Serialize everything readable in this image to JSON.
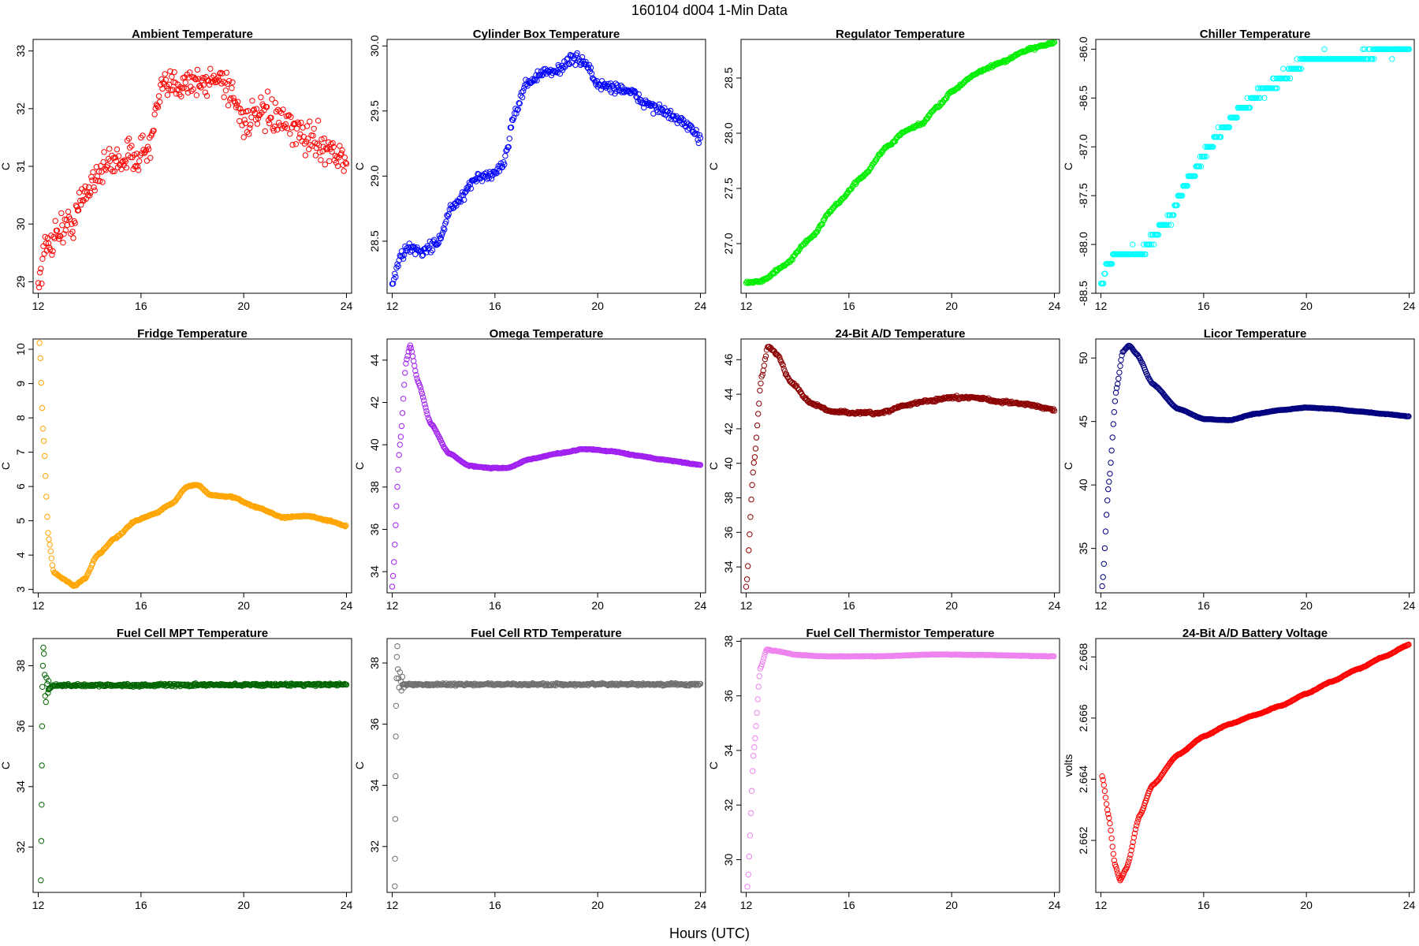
{
  "figure": {
    "title": "160104    d004    1-Min Data",
    "xlabel": "Hours (UTC)"
  },
  "chart_data": [
    {
      "type": "scatter",
      "title": "Ambient Temperature",
      "ylabel": "C",
      "color": "#ff0000",
      "xlim": [
        11.8,
        24.2
      ],
      "ylim": [
        28.8,
        33.2
      ],
      "xticks": [
        12,
        16,
        20,
        24
      ],
      "yticks": [
        29,
        30,
        31,
        32,
        33
      ],
      "noise": 0.28,
      "curve": [
        [
          12.0,
          29.0
        ],
        [
          12.3,
          29.6
        ],
        [
          12.8,
          29.9
        ],
        [
          13.3,
          30.0
        ],
        [
          13.8,
          30.5
        ],
        [
          14.3,
          30.9
        ],
        [
          15.0,
          31.1
        ],
        [
          15.8,
          31.2
        ],
        [
          16.3,
          31.3
        ],
        [
          16.8,
          32.3
        ],
        [
          17.2,
          32.4
        ],
        [
          17.8,
          32.5
        ],
        [
          18.5,
          32.4
        ],
        [
          19.0,
          32.6
        ],
        [
          19.5,
          32.3
        ],
        [
          20.0,
          31.8
        ],
        [
          21.0,
          31.9
        ],
        [
          22.0,
          31.6
        ],
        [
          23.0,
          31.4
        ],
        [
          24.0,
          31.1
        ]
      ]
    },
    {
      "type": "scatter",
      "title": "Cylinder Box Temperature",
      "ylabel": "C",
      "color": "#0000ff",
      "xlim": [
        11.8,
        24.2
      ],
      "ylim": [
        28.1,
        30.05
      ],
      "xticks": [
        12,
        16,
        20,
        24
      ],
      "yticks": [
        28.5,
        29.0,
        29.5,
        30.0
      ],
      "noise": 0.04,
      "curve": [
        [
          12.0,
          28.15
        ],
        [
          12.3,
          28.38
        ],
        [
          12.7,
          28.45
        ],
        [
          13.2,
          28.42
        ],
        [
          13.8,
          28.5
        ],
        [
          14.3,
          28.75
        ],
        [
          14.8,
          28.85
        ],
        [
          15.3,
          29.0
        ],
        [
          15.8,
          29.0
        ],
        [
          16.3,
          29.08
        ],
        [
          16.8,
          29.5
        ],
        [
          17.2,
          29.7
        ],
        [
          17.7,
          29.78
        ],
        [
          18.3,
          29.8
        ],
        [
          19.0,
          29.9
        ],
        [
          19.5,
          29.88
        ],
        [
          20.0,
          29.7
        ],
        [
          21.0,
          29.67
        ],
        [
          22.0,
          29.55
        ],
        [
          23.0,
          29.45
        ],
        [
          24.0,
          29.3
        ]
      ]
    },
    {
      "type": "scatter",
      "title": "Regulator Temperature",
      "ylabel": "C",
      "color": "#00ee00",
      "xlim": [
        11.8,
        24.2
      ],
      "ylim": [
        26.55,
        28.85
      ],
      "xticks": [
        12,
        16,
        20,
        24
      ],
      "yticks": [
        27.0,
        27.5,
        28.0,
        28.5
      ],
      "noise": 0.012,
      "curve": [
        [
          12.0,
          26.65
        ],
        [
          12.6,
          26.66
        ],
        [
          13.5,
          26.8
        ],
        [
          14.5,
          27.05
        ],
        [
          15.5,
          27.35
        ],
        [
          16.5,
          27.6
        ],
        [
          17.5,
          27.88
        ],
        [
          18.2,
          28.02
        ],
        [
          18.8,
          28.08
        ],
        [
          19.5,
          28.25
        ],
        [
          20.0,
          28.38
        ],
        [
          21.0,
          28.55
        ],
        [
          22.0,
          28.65
        ],
        [
          23.0,
          28.76
        ],
        [
          24.0,
          28.82
        ]
      ]
    },
    {
      "type": "scatter",
      "title": "Chiller Temperature",
      "ylabel": "C",
      "color": "#00ffff",
      "xlim": [
        11.8,
        24.2
      ],
      "ylim": [
        -88.5,
        -85.9
      ],
      "xticks": [
        12,
        16,
        20,
        24
      ],
      "yticks": [
        -88.5,
        -88.0,
        -87.5,
        -87.0,
        -86.5,
        -86.0
      ],
      "step": 0.1,
      "noise": 0.04,
      "curve": [
        [
          12.0,
          -88.4
        ],
        [
          12.3,
          -88.2
        ],
        [
          12.6,
          -88.1
        ],
        [
          13.5,
          -88.1
        ],
        [
          14.5,
          -87.8
        ],
        [
          15.5,
          -87.3
        ],
        [
          16.5,
          -86.9
        ],
        [
          17.5,
          -86.6
        ],
        [
          18.5,
          -86.4
        ],
        [
          19.5,
          -86.2
        ],
        [
          20.0,
          -86.1
        ],
        [
          21.0,
          -86.1
        ],
        [
          22.0,
          -86.1
        ],
        [
          23.0,
          -86.0
        ],
        [
          24.0,
          -86.0
        ]
      ]
    },
    {
      "type": "scatter",
      "title": "Fridge Temperature",
      "ylabel": "C",
      "color": "#ffa500",
      "xlim": [
        11.8,
        24.2
      ],
      "ylim": [
        2.9,
        10.3
      ],
      "xticks": [
        12,
        16,
        20,
        24
      ],
      "yticks": [
        3,
        4,
        5,
        6,
        7,
        8,
        9,
        10
      ],
      "noise": 0.02,
      "curve": [
        [
          12.05,
          10.2
        ],
        [
          12.2,
          7.5
        ],
        [
          12.4,
          4.5
        ],
        [
          12.6,
          3.5
        ],
        [
          13.0,
          3.3
        ],
        [
          13.4,
          3.1
        ],
        [
          13.8,
          3.3
        ],
        [
          14.3,
          4.0
        ],
        [
          15.0,
          4.5
        ],
        [
          15.8,
          5.0
        ],
        [
          16.5,
          5.2
        ],
        [
          17.2,
          5.5
        ],
        [
          17.8,
          6.0
        ],
        [
          18.2,
          6.05
        ],
        [
          18.7,
          5.75
        ],
        [
          19.5,
          5.7
        ],
        [
          20.5,
          5.4
        ],
        [
          21.5,
          5.1
        ],
        [
          22.5,
          5.15
        ],
        [
          23.3,
          5.0
        ],
        [
          24.0,
          4.85
        ]
      ]
    },
    {
      "type": "scatter",
      "title": "Omega Temperature",
      "ylabel": "C",
      "color": "#a020f0",
      "xlim": [
        11.8,
        24.2
      ],
      "ylim": [
        33.0,
        45.0
      ],
      "xticks": [
        12,
        16,
        20,
        24
      ],
      "yticks": [
        34,
        36,
        38,
        40,
        42,
        44
      ],
      "noise": 0.02,
      "curve": [
        [
          12.0,
          33.3
        ],
        [
          12.3,
          40.0
        ],
        [
          12.55,
          44.0
        ],
        [
          12.7,
          44.7
        ],
        [
          13.0,
          43.0
        ],
        [
          13.5,
          41.0
        ],
        [
          14.2,
          39.6
        ],
        [
          15.0,
          39.0
        ],
        [
          15.8,
          38.9
        ],
        [
          16.5,
          38.9
        ],
        [
          17.3,
          39.3
        ],
        [
          18.5,
          39.6
        ],
        [
          19.5,
          39.8
        ],
        [
          20.5,
          39.7
        ],
        [
          21.5,
          39.5
        ],
        [
          22.5,
          39.3
        ],
        [
          24.0,
          39.05
        ]
      ]
    },
    {
      "type": "scatter",
      "title": "24-Bit A/D Temperature",
      "ylabel": "C",
      "color": "#8b0000",
      "xlim": [
        11.8,
        24.2
      ],
      "ylim": [
        32.5,
        47.2
      ],
      "xticks": [
        12,
        16,
        20,
        24
      ],
      "yticks": [
        34,
        36,
        38,
        40,
        42,
        44,
        46
      ],
      "noise": 0.08,
      "curve": [
        [
          12.0,
          32.8
        ],
        [
          12.3,
          40.0
        ],
        [
          12.6,
          45.0
        ],
        [
          12.85,
          46.8
        ],
        [
          13.2,
          46.3
        ],
        [
          13.7,
          44.8
        ],
        [
          14.5,
          43.5
        ],
        [
          15.3,
          43.0
        ],
        [
          16.5,
          42.9
        ],
        [
          17.3,
          42.9
        ],
        [
          18.0,
          43.3
        ],
        [
          19.0,
          43.6
        ],
        [
          20.0,
          43.8
        ],
        [
          21.0,
          43.8
        ],
        [
          22.0,
          43.55
        ],
        [
          23.0,
          43.4
        ],
        [
          24.0,
          43.1
        ]
      ]
    },
    {
      "type": "scatter",
      "title": "Licor Temperature",
      "ylabel": "C",
      "color": "#000080",
      "xlim": [
        11.8,
        24.2
      ],
      "ylim": [
        31.5,
        51.5
      ],
      "xticks": [
        12,
        16,
        20,
        24
      ],
      "yticks": [
        35,
        40,
        45,
        50
      ],
      "noise": 0.02,
      "curve": [
        [
          12.05,
          32.0
        ],
        [
          12.3,
          40.0
        ],
        [
          12.6,
          47.5
        ],
        [
          12.85,
          50.5
        ],
        [
          13.1,
          51.0
        ],
        [
          13.4,
          50.3
        ],
        [
          14.0,
          48.0
        ],
        [
          15.0,
          46.0
        ],
        [
          16.0,
          45.2
        ],
        [
          17.0,
          45.1
        ],
        [
          18.0,
          45.6
        ],
        [
          19.0,
          45.9
        ],
        [
          20.0,
          46.1
        ],
        [
          21.0,
          46.0
        ],
        [
          22.0,
          45.8
        ],
        [
          23.0,
          45.6
        ],
        [
          24.0,
          45.4
        ]
      ]
    },
    {
      "type": "scatter",
      "title": "Fuel Cell MPT Temperature",
      "ylabel": "C",
      "color": "#006400",
      "xlim": [
        11.8,
        24.2
      ],
      "ylim": [
        30.5,
        38.9
      ],
      "xticks": [
        12,
        16,
        20,
        24
      ],
      "yticks": [
        32,
        34,
        36,
        38
      ],
      "noise": 0.04,
      "curve": [
        [
          12.4,
          37.2
        ],
        [
          12.6,
          37.35
        ],
        [
          13.0,
          37.35
        ],
        [
          24.0,
          37.38
        ]
      ],
      "scatter": [
        [
          12.1,
          30.9
        ],
        [
          12.12,
          32.2
        ],
        [
          12.13,
          33.4
        ],
        [
          12.14,
          34.7
        ],
        [
          12.15,
          36.0
        ],
        [
          12.16,
          37.3
        ],
        [
          12.18,
          38.0
        ],
        [
          12.2,
          38.6
        ],
        [
          12.22,
          38.4
        ],
        [
          12.25,
          37.7
        ],
        [
          12.27,
          37.0
        ],
        [
          12.3,
          36.8
        ],
        [
          12.32,
          37.6
        ],
        [
          12.35,
          37.4
        ],
        [
          12.38,
          37.1
        ],
        [
          12.4,
          37.5
        ]
      ]
    },
    {
      "type": "scatter",
      "title": "Fuel Cell RTD Temperature",
      "ylabel": "C",
      "color": "#707070",
      "xlim": [
        11.8,
        24.2
      ],
      "ylim": [
        30.5,
        38.8
      ],
      "xticks": [
        12,
        16,
        20,
        24
      ],
      "yticks": [
        32,
        34,
        36,
        38
      ],
      "noise": 0.035,
      "curve": [
        [
          12.4,
          37.3
        ],
        [
          13.0,
          37.3
        ],
        [
          24.0,
          37.3
        ]
      ],
      "scatter": [
        [
          12.1,
          30.7
        ],
        [
          12.11,
          31.6
        ],
        [
          12.12,
          32.9
        ],
        [
          12.13,
          34.3
        ],
        [
          12.14,
          35.6
        ],
        [
          12.15,
          36.6
        ],
        [
          12.17,
          37.5
        ],
        [
          12.18,
          38.2
        ],
        [
          12.2,
          38.55
        ],
        [
          12.22,
          37.8
        ],
        [
          12.25,
          37.5
        ],
        [
          12.27,
          37.2
        ],
        [
          12.3,
          37.7
        ],
        [
          12.33,
          37.4
        ],
        [
          12.36,
          37.1
        ],
        [
          12.4,
          37.55
        ],
        [
          12.45,
          37.2
        ]
      ]
    },
    {
      "type": "scatter",
      "title": "Fuel Cell Thermistor Temperature",
      "ylabel": "C",
      "color": "#ee82ee",
      "xlim": [
        11.8,
        24.2
      ],
      "ylim": [
        28.8,
        38.1
      ],
      "xticks": [
        12,
        16,
        20,
        24
      ],
      "yticks": [
        30,
        32,
        34,
        36,
        38
      ],
      "noise": 0.01,
      "curve": [
        [
          12.05,
          29.0
        ],
        [
          12.3,
          34.0
        ],
        [
          12.55,
          37.0
        ],
        [
          12.8,
          37.7
        ],
        [
          13.1,
          37.65
        ],
        [
          14.0,
          37.5
        ],
        [
          15.0,
          37.45
        ],
        [
          17.0,
          37.45
        ],
        [
          19.5,
          37.52
        ],
        [
          21.0,
          37.5
        ],
        [
          24.0,
          37.45
        ]
      ]
    },
    {
      "type": "scatter",
      "title": "24-Bit A/D Battery Voltage",
      "ylabel": "volts",
      "color": "#ff0000",
      "xlim": [
        11.8,
        24.2
      ],
      "ylim": [
        2.6603,
        2.6686
      ],
      "xticks": [
        12,
        16,
        20,
        24
      ],
      "yticks": [
        2.662,
        2.664,
        2.666,
        2.668
      ],
      "noise": 1e-05,
      "curve": [
        [
          12.05,
          2.6641
        ],
        [
          12.3,
          2.6628
        ],
        [
          12.55,
          2.6612
        ],
        [
          12.75,
          2.6607
        ],
        [
          13.0,
          2.6611
        ],
        [
          13.5,
          2.6628
        ],
        [
          14.0,
          2.6638
        ],
        [
          15.0,
          2.6648
        ],
        [
          16.0,
          2.6654
        ],
        [
          17.0,
          2.6658
        ],
        [
          18.0,
          2.6661
        ],
        [
          19.0,
          2.6664
        ],
        [
          20.0,
          2.6668
        ],
        [
          21.0,
          2.6672
        ],
        [
          22.0,
          2.6676
        ],
        [
          23.0,
          2.668
        ],
        [
          24.0,
          2.6684
        ]
      ]
    }
  ]
}
